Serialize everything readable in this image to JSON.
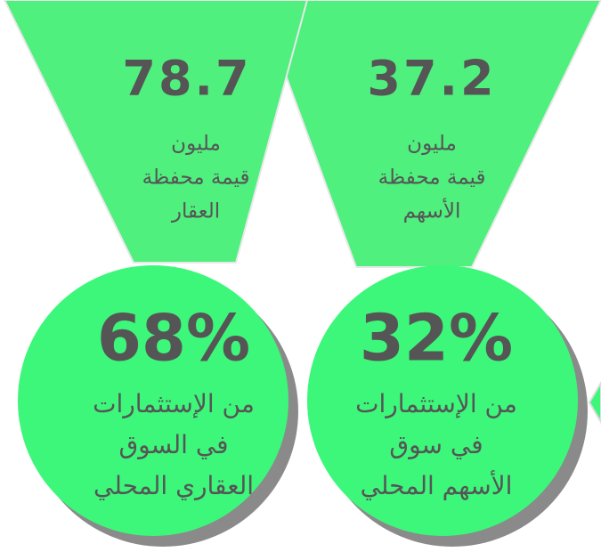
{
  "panels": [
    {
      "amount": "78.7",
      "amount_lines": [
        "مليون",
        "قيمة محفظة",
        "العقار"
      ],
      "percent": "68%",
      "percent_lines": [
        "من الإستثمارات",
        "في السوق",
        "العقاري المحلي"
      ]
    },
    {
      "amount": "37.2",
      "amount_lines": [
        "مليون",
        "قيمة محفظة",
        "الأسهم"
      ],
      "percent": "32%",
      "percent_lines": [
        "من الإستثمارات",
        "في سوق",
        "الأسهم المحلي"
      ]
    }
  ]
}
